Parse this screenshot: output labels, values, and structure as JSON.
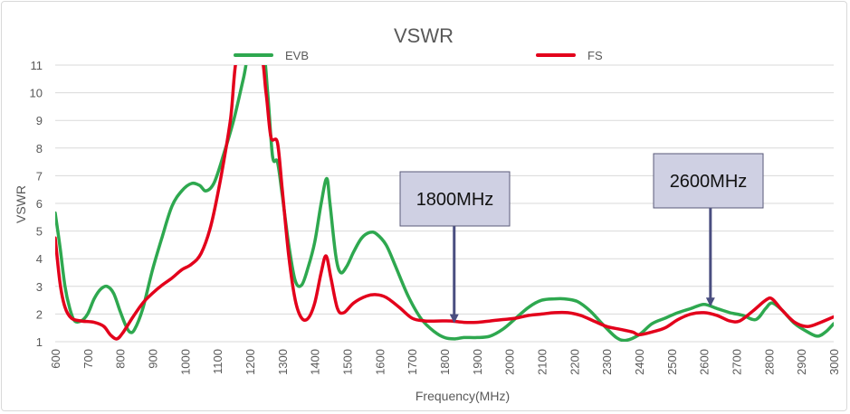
{
  "chart_data": {
    "type": "line",
    "title": "VSWR",
    "xlabel": "Frequency(MHz)",
    "ylabel": "VSWR",
    "xlim": [
      600,
      3000
    ],
    "ylim": [
      1,
      11
    ],
    "x_ticks": [
      "600",
      "700",
      "800",
      "900",
      "1000",
      "1100",
      "1200",
      "1300",
      "1400",
      "1500",
      "1600",
      "1700",
      "1800",
      "1900",
      "2000",
      "2100",
      "2200",
      "2300",
      "2400",
      "2500",
      "2600",
      "2700",
      "2800",
      "2900",
      "3000"
    ],
    "y_ticks": [
      "1",
      "2",
      "3",
      "4",
      "5",
      "6",
      "7",
      "8",
      "9",
      "10",
      "11"
    ],
    "grid": "horizontal",
    "legend_position": "top",
    "series": [
      {
        "name": "EVB",
        "color": "#2ea84f",
        "points": [
          [
            600,
            5.65
          ],
          [
            615,
            4.4
          ],
          [
            630,
            3.0
          ],
          [
            645,
            2.2
          ],
          [
            660,
            1.75
          ],
          [
            680,
            1.75
          ],
          [
            700,
            2.0
          ],
          [
            720,
            2.55
          ],
          [
            740,
            2.9
          ],
          [
            760,
            3.0
          ],
          [
            780,
            2.75
          ],
          [
            800,
            2.1
          ],
          [
            815,
            1.65
          ],
          [
            830,
            1.35
          ],
          [
            845,
            1.45
          ],
          [
            870,
            2.2
          ],
          [
            900,
            3.6
          ],
          [
            930,
            4.8
          ],
          [
            960,
            5.9
          ],
          [
            990,
            6.45
          ],
          [
            1020,
            6.72
          ],
          [
            1045,
            6.65
          ],
          [
            1065,
            6.45
          ],
          [
            1090,
            6.75
          ],
          [
            1120,
            7.8
          ],
          [
            1150,
            9.0
          ],
          [
            1180,
            10.5
          ],
          [
            1200,
            11.5
          ],
          [
            1240,
            11.5
          ],
          [
            1255,
            10.0
          ],
          [
            1270,
            7.7
          ],
          [
            1285,
            7.5
          ],
          [
            1300,
            6.3
          ],
          [
            1320,
            4.5
          ],
          [
            1340,
            3.2
          ],
          [
            1360,
            3.05
          ],
          [
            1380,
            3.7
          ],
          [
            1400,
            4.6
          ],
          [
            1420,
            6.0
          ],
          [
            1437,
            6.9
          ],
          [
            1447,
            6.0
          ],
          [
            1465,
            4.1
          ],
          [
            1480,
            3.5
          ],
          [
            1500,
            3.75
          ],
          [
            1520,
            4.25
          ],
          [
            1545,
            4.75
          ],
          [
            1570,
            4.95
          ],
          [
            1590,
            4.9
          ],
          [
            1620,
            4.5
          ],
          [
            1650,
            3.7
          ],
          [
            1690,
            2.6
          ],
          [
            1730,
            1.8
          ],
          [
            1770,
            1.35
          ],
          [
            1800,
            1.15
          ],
          [
            1830,
            1.1
          ],
          [
            1860,
            1.15
          ],
          [
            1900,
            1.15
          ],
          [
            1940,
            1.2
          ],
          [
            1980,
            1.45
          ],
          [
            2020,
            1.85
          ],
          [
            2060,
            2.25
          ],
          [
            2100,
            2.5
          ],
          [
            2140,
            2.55
          ],
          [
            2170,
            2.55
          ],
          [
            2210,
            2.45
          ],
          [
            2250,
            2.1
          ],
          [
            2290,
            1.6
          ],
          [
            2330,
            1.15
          ],
          [
            2360,
            1.05
          ],
          [
            2400,
            1.25
          ],
          [
            2440,
            1.65
          ],
          [
            2480,
            1.85
          ],
          [
            2520,
            2.05
          ],
          [
            2560,
            2.2
          ],
          [
            2600,
            2.35
          ],
          [
            2640,
            2.2
          ],
          [
            2680,
            2.05
          ],
          [
            2720,
            1.95
          ],
          [
            2760,
            1.8
          ],
          [
            2790,
            2.2
          ],
          [
            2810,
            2.4
          ],
          [
            2840,
            2.15
          ],
          [
            2880,
            1.65
          ],
          [
            2920,
            1.35
          ],
          [
            2950,
            1.2
          ],
          [
            2975,
            1.35
          ],
          [
            3000,
            1.65
          ]
        ]
      },
      {
        "name": "FS",
        "color": "#e3001b",
        "points": [
          [
            600,
            4.75
          ],
          [
            615,
            3.1
          ],
          [
            630,
            2.25
          ],
          [
            650,
            1.85
          ],
          [
            680,
            1.75
          ],
          [
            720,
            1.7
          ],
          [
            750,
            1.55
          ],
          [
            770,
            1.25
          ],
          [
            790,
            1.1
          ],
          [
            810,
            1.35
          ],
          [
            840,
            1.9
          ],
          [
            870,
            2.4
          ],
          [
            900,
            2.75
          ],
          [
            930,
            3.05
          ],
          [
            960,
            3.3
          ],
          [
            990,
            3.6
          ],
          [
            1020,
            3.8
          ],
          [
            1050,
            4.2
          ],
          [
            1080,
            5.2
          ],
          [
            1110,
            6.9
          ],
          [
            1140,
            9.0
          ],
          [
            1165,
            11.5
          ],
          [
            1230,
            11.5
          ],
          [
            1250,
            10.0
          ],
          [
            1265,
            8.4
          ],
          [
            1285,
            8.2
          ],
          [
            1300,
            6.5
          ],
          [
            1320,
            4.1
          ],
          [
            1340,
            2.5
          ],
          [
            1360,
            1.85
          ],
          [
            1380,
            1.85
          ],
          [
            1400,
            2.4
          ],
          [
            1420,
            3.5
          ],
          [
            1435,
            4.1
          ],
          [
            1450,
            3.3
          ],
          [
            1470,
            2.2
          ],
          [
            1490,
            2.05
          ],
          [
            1520,
            2.4
          ],
          [
            1560,
            2.65
          ],
          [
            1590,
            2.7
          ],
          [
            1620,
            2.6
          ],
          [
            1660,
            2.25
          ],
          [
            1700,
            1.85
          ],
          [
            1740,
            1.75
          ],
          [
            1780,
            1.75
          ],
          [
            1820,
            1.75
          ],
          [
            1860,
            1.7
          ],
          [
            1900,
            1.7
          ],
          [
            1940,
            1.75
          ],
          [
            1980,
            1.8
          ],
          [
            2020,
            1.85
          ],
          [
            2060,
            1.95
          ],
          [
            2100,
            2.0
          ],
          [
            2140,
            2.05
          ],
          [
            2180,
            2.05
          ],
          [
            2220,
            1.95
          ],
          [
            2260,
            1.75
          ],
          [
            2300,
            1.55
          ],
          [
            2340,
            1.45
          ],
          [
            2380,
            1.35
          ],
          [
            2400,
            1.25
          ],
          [
            2440,
            1.35
          ],
          [
            2480,
            1.5
          ],
          [
            2520,
            1.8
          ],
          [
            2560,
            2.0
          ],
          [
            2600,
            2.05
          ],
          [
            2640,
            1.95
          ],
          [
            2680,
            1.75
          ],
          [
            2710,
            1.75
          ],
          [
            2750,
            2.1
          ],
          [
            2790,
            2.5
          ],
          [
            2810,
            2.55
          ],
          [
            2840,
            2.15
          ],
          [
            2880,
            1.7
          ],
          [
            2920,
            1.55
          ],
          [
            2960,
            1.7
          ],
          [
            3000,
            1.9
          ]
        ]
      }
    ],
    "annotations": [
      {
        "text": "1800MHz",
        "target_x": 1830,
        "target_y": 1.7
      },
      {
        "text": "2600MHz",
        "target_x": 2620,
        "target_y": 2.3
      }
    ]
  }
}
